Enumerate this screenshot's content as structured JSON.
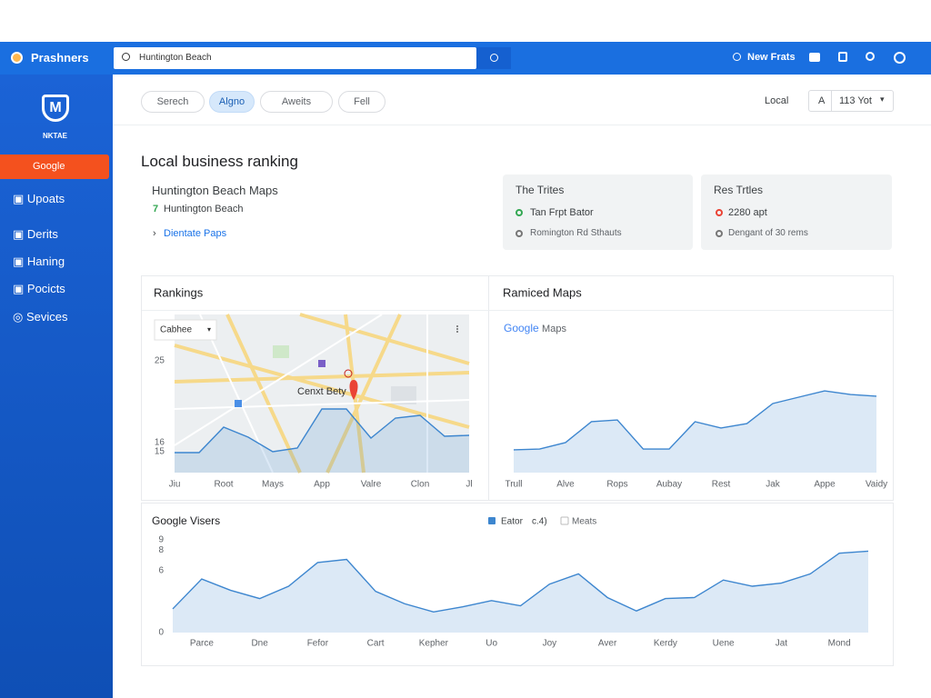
{
  "header": {
    "brand": "Prashners",
    "search": "Huntington Beach",
    "action": "New Frats"
  },
  "sidebar": {
    "logo": "NKTAE",
    "button": "Google",
    "items": [
      "Upoats",
      "Derits",
      "Haning",
      "Pocicts",
      "Sevices"
    ]
  },
  "toolbar": {
    "chips": [
      "Serech",
      "Algno",
      "Aweits",
      "Fell"
    ],
    "active": 1,
    "local": "Local",
    "select_prefix": "A",
    "select": "113 Yot"
  },
  "page": {
    "title": "Local business ranking"
  },
  "info": {
    "heading": "Huntington Beach Maps",
    "location": "Huntington Beach",
    "link": "Dientate Paps"
  },
  "cards": [
    {
      "title": "The Trites",
      "line1": "Tan Frpt Bator",
      "line2": "Romington Rd Sthauts"
    },
    {
      "title": "Res Trtles",
      "line1": "2280 apt",
      "line2": "Dengant of 30 rems"
    }
  ],
  "chart_data": [
    {
      "type": "area",
      "title": "Rankings",
      "dropdown": "Cabhee",
      "map_label": "Cenxt Bety",
      "color": "#3d86cf",
      "categories": [
        "Jiu",
        null,
        "Root",
        null,
        "Mays",
        null,
        "App",
        null,
        "Valre",
        null,
        "Clon",
        null,
        "Jl"
      ],
      "values": [
        14.9,
        14.9,
        17.7,
        16.6,
        15.0,
        15.4,
        19.7,
        19.7,
        16.5,
        18.7,
        19.0,
        16.7,
        16.8
      ],
      "ylim": [
        12.7,
        30.1
      ],
      "yticks": [
        25,
        16,
        15
      ]
    },
    {
      "type": "area",
      "title": "Ramiced Maps",
      "logo": "Google",
      "logo_suffix": "Maps",
      "color": "#3d86cf",
      "categories": [
        "Trull",
        null,
        "Alve",
        null,
        "Rops",
        null,
        "Aubay",
        null,
        "Rest",
        null,
        "Jak",
        null,
        "Appe",
        null,
        "Vaidy"
      ],
      "values": [
        14.4,
        14.9,
        19.0,
        32.2,
        33.3,
        14.9,
        14.9,
        32.2,
        28.2,
        31.0,
        43.7,
        47.7,
        51.7,
        49.4,
        48.3
      ],
      "ylim": [
        0,
        100
      ]
    },
    {
      "type": "area",
      "title": "Google Visers",
      "legend_note": "c.4)",
      "legend_inactive": "Meats",
      "categories": [
        null,
        "Parce",
        null,
        "Dne",
        null,
        "Fefor",
        null,
        "Cart",
        null,
        "Kepher",
        null,
        "Uo",
        null,
        "Joy",
        null,
        "Aver",
        null,
        "Kerdy",
        null,
        "Uene",
        null,
        "Jat",
        null,
        "Mond",
        null
      ],
      "series": [
        {
          "name": "Eator",
          "color": "#3d86cf",
          "values": [
            2.3,
            5.2,
            4.1,
            3.3,
            4.5,
            6.8,
            7.1,
            4.0,
            2.8,
            2.0,
            2.5,
            3.1,
            2.6,
            4.7,
            5.7,
            3.4,
            2.1,
            3.3,
            3.4,
            5.1,
            4.5,
            4.8,
            5.7,
            7.7,
            7.9
          ]
        }
      ],
      "ylim": [
        0,
        9
      ],
      "yticks": [
        9,
        8,
        6,
        0
      ]
    }
  ]
}
